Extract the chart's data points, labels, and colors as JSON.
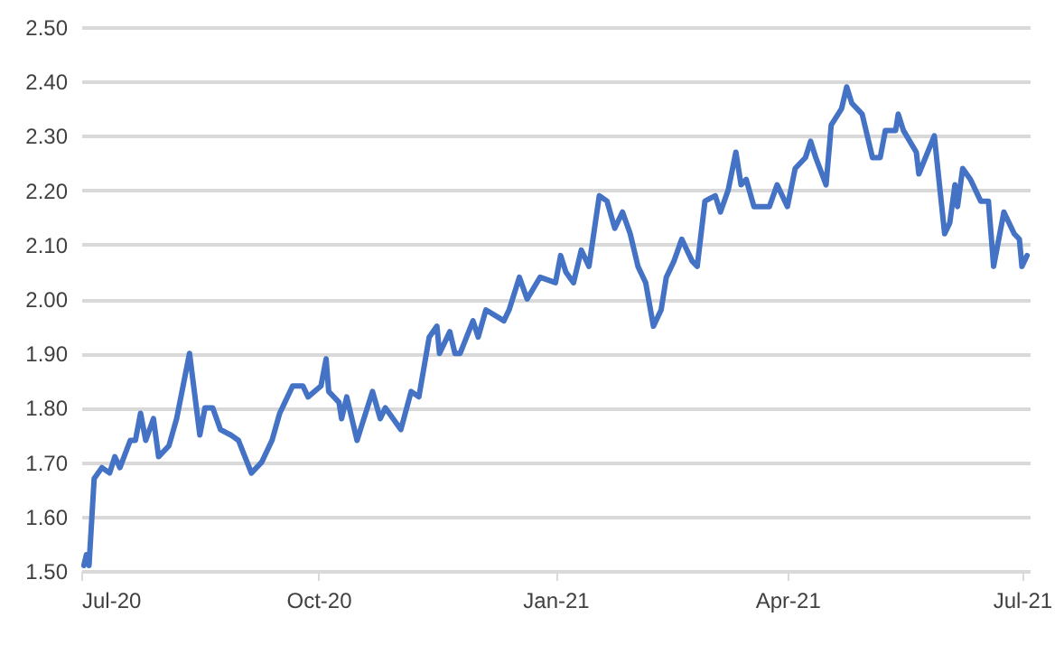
{
  "chart_data": {
    "type": "line",
    "x": [
      "2020-07-02",
      "2020-07-03",
      "2020-07-04",
      "2020-07-06",
      "2020-07-09",
      "2020-07-12",
      "2020-07-14",
      "2020-07-16",
      "2020-07-20",
      "2020-07-22",
      "2020-07-24",
      "2020-07-26",
      "2020-07-29",
      "2020-07-31",
      "2020-08-04",
      "2020-08-07",
      "2020-08-12",
      "2020-08-16",
      "2020-08-18",
      "2020-08-21",
      "2020-08-24",
      "2020-08-28",
      "2020-08-31",
      "2020-09-05",
      "2020-09-09",
      "2020-09-13",
      "2020-09-16",
      "2020-09-18",
      "2020-09-21",
      "2020-09-25",
      "2020-09-27",
      "2020-10-02",
      "2020-10-04",
      "2020-10-05",
      "2020-10-09",
      "2020-10-10",
      "2020-10-12",
      "2020-10-16",
      "2020-10-18",
      "2020-10-22",
      "2020-10-25",
      "2020-10-27",
      "2020-11-02",
      "2020-11-06",
      "2020-11-09",
      "2020-11-13",
      "2020-11-16",
      "2020-11-17",
      "2020-11-21",
      "2020-11-23",
      "2020-11-25",
      "2020-11-30",
      "2020-12-02",
      "2020-12-05",
      "2020-12-12",
      "2020-12-14",
      "2020-12-18",
      "2020-12-21",
      "2020-12-26",
      "2021-01-01",
      "2021-01-03",
      "2021-01-05",
      "2021-01-08",
      "2021-01-11",
      "2021-01-14",
      "2021-01-18",
      "2021-01-21",
      "2021-01-24",
      "2021-01-27",
      "2021-01-30",
      "2021-02-02",
      "2021-02-05",
      "2021-02-08",
      "2021-02-11",
      "2021-02-13",
      "2021-02-16",
      "2021-02-19",
      "2021-02-23",
      "2021-02-25",
      "2021-02-28",
      "2021-03-04",
      "2021-03-06",
      "2021-03-09",
      "2021-03-12",
      "2021-03-14",
      "2021-03-16",
      "2021-03-19",
      "2021-03-21",
      "2021-03-25",
      "2021-03-28",
      "2021-04-01",
      "2021-04-04",
      "2021-04-08",
      "2021-04-10",
      "2021-04-12",
      "2021-04-16",
      "2021-04-18",
      "2021-04-22",
      "2021-04-24",
      "2021-04-26",
      "2021-04-30",
      "2021-05-04",
      "2021-05-07",
      "2021-05-09",
      "2021-05-13",
      "2021-05-14",
      "2021-05-16",
      "2021-05-21",
      "2021-05-22",
      "2021-05-28",
      "2021-06-01",
      "2021-06-03",
      "2021-06-05",
      "2021-06-06",
      "2021-06-08",
      "2021-06-11",
      "2021-06-15",
      "2021-06-18",
      "2021-06-20",
      "2021-06-24",
      "2021-06-28",
      "2021-06-30",
      "2021-07-01",
      "2021-07-03"
    ],
    "series": [
      {
        "color": "#4472c4",
        "values": [
          1.51,
          1.53,
          1.51,
          1.67,
          1.69,
          1.68,
          1.71,
          1.69,
          1.74,
          1.74,
          1.79,
          1.74,
          1.78,
          1.71,
          1.73,
          1.78,
          1.9,
          1.75,
          1.8,
          1.8,
          1.76,
          1.75,
          1.74,
          1.68,
          1.7,
          1.74,
          1.79,
          1.81,
          1.84,
          1.84,
          1.82,
          1.84,
          1.89,
          1.83,
          1.81,
          1.78,
          1.82,
          1.74,
          1.77,
          1.83,
          1.78,
          1.8,
          1.76,
          1.83,
          1.82,
          1.93,
          1.95,
          1.9,
          1.94,
          1.9,
          1.9,
          1.96,
          1.93,
          1.98,
          1.96,
          1.98,
          2.04,
          2.0,
          2.04,
          2.03,
          2.08,
          2.05,
          2.03,
          2.09,
          2.06,
          2.19,
          2.18,
          2.13,
          2.16,
          2.12,
          2.06,
          2.03,
          1.95,
          1.98,
          2.04,
          2.07,
          2.11,
          2.07,
          2.06,
          2.18,
          2.19,
          2.16,
          2.2,
          2.27,
          2.21,
          2.22,
          2.17,
          2.17,
          2.17,
          2.21,
          2.17,
          2.24,
          2.26,
          2.29,
          2.26,
          2.21,
          2.32,
          2.35,
          2.39,
          2.36,
          2.34,
          2.26,
          2.26,
          2.31,
          2.31,
          2.34,
          2.31,
          2.27,
          2.23,
          2.3,
          2.12,
          2.14,
          2.21,
          2.17,
          2.24,
          2.22,
          2.18,
          2.18,
          2.06,
          2.16,
          2.12,
          2.11,
          2.06,
          2.08
        ]
      }
    ],
    "xlim": [
      "2020-07-01",
      "2021-07-04"
    ],
    "xticks": [
      {
        "value": "2020-07-01",
        "label": "Jul-20"
      },
      {
        "value": "2020-10-01",
        "label": "Oct-20"
      },
      {
        "value": "2021-01-01",
        "label": "Jan-21"
      },
      {
        "value": "2021-04-01",
        "label": "Apr-21"
      },
      {
        "value": "2021-07-01",
        "label": "Jul-21"
      }
    ],
    "ylim": [
      1.5,
      2.5
    ],
    "yticks": [
      {
        "value": 1.5,
        "label": "1.50"
      },
      {
        "value": 1.6,
        "label": "1.60"
      },
      {
        "value": 1.7,
        "label": "1.70"
      },
      {
        "value": 1.8,
        "label": "1.80"
      },
      {
        "value": 1.9,
        "label": "1.90"
      },
      {
        "value": 2.0,
        "label": "2.00"
      },
      {
        "value": 2.1,
        "label": "2.10"
      },
      {
        "value": 2.2,
        "label": "2.20"
      },
      {
        "value": 2.3,
        "label": "2.30"
      },
      {
        "value": 2.4,
        "label": "2.40"
      },
      {
        "value": 2.5,
        "label": "2.50"
      }
    ],
    "grid": "y",
    "marker": "none",
    "line_style": "solid"
  }
}
